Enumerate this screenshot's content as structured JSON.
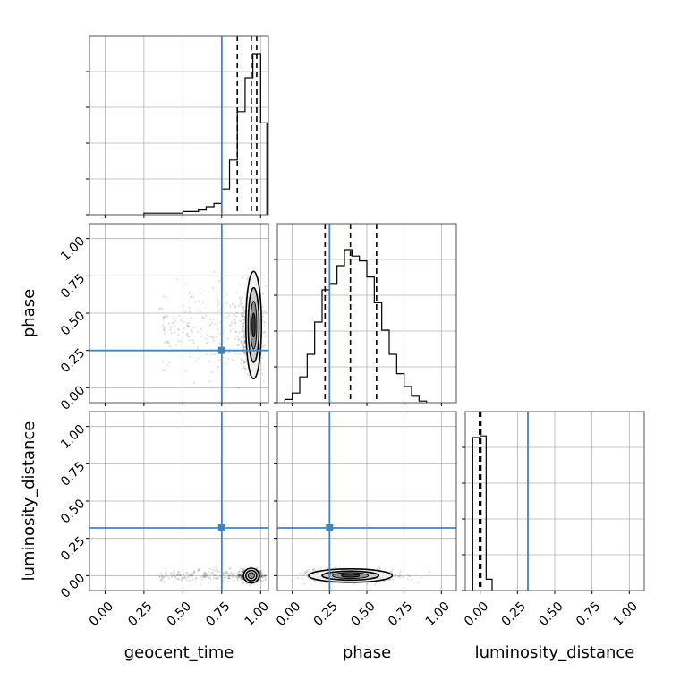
{
  "chart_data": {
    "type": "corner",
    "parameters": [
      "geocent_time",
      "phase",
      "luminosity_distance"
    ],
    "axis_labels": {
      "x": [
        "geocent_time",
        "phase",
        "luminosity_distance"
      ],
      "y": [
        "",
        "phase",
        "luminosity_distance"
      ]
    },
    "ticks": [
      0.0,
      0.25,
      0.5,
      0.75,
      1.0
    ],
    "tick_labels": [
      "0.00",
      "0.25",
      "0.50",
      "0.75",
      "1.00"
    ],
    "ranges": {
      "geocent_time": [
        -0.1,
        1.05
      ],
      "phase": [
        -0.1,
        1.1
      ],
      "luminosity_distance": [
        -0.1,
        1.1
      ]
    },
    "truths": {
      "geocent_time": 0.75,
      "phase": 0.25,
      "luminosity_distance": 0.32
    },
    "truth_color": "#4682b4",
    "contour_color": "#000000",
    "grid": true,
    "histograms": {
      "geocent_time": {
        "bin_edges": [
          0.25,
          0.3,
          0.35,
          0.4,
          0.45,
          0.5,
          0.55,
          0.6,
          0.65,
          0.7,
          0.75,
          0.8,
          0.85,
          0.9,
          0.95,
          1.0,
          1.04
        ],
        "heights": [
          0.01,
          0.01,
          0.01,
          0.01,
          0.01,
          0.02,
          0.02,
          0.03,
          0.05,
          0.07,
          0.16,
          0.34,
          0.64,
          0.85,
          1.0,
          0.57
        ],
        "quantiles": [
          0.85,
          0.94,
          0.975
        ]
      },
      "phase": {
        "bin_edges": [
          -0.05,
          0.0,
          0.05,
          0.1,
          0.15,
          0.2,
          0.25,
          0.3,
          0.35,
          0.4,
          0.45,
          0.5,
          0.55,
          0.6,
          0.65,
          0.7,
          0.75,
          0.8,
          0.85,
          0.9
        ],
        "heights": [
          0.02,
          0.06,
          0.16,
          0.3,
          0.5,
          0.7,
          0.74,
          0.85,
          0.95,
          0.91,
          0.88,
          0.78,
          0.62,
          0.45,
          0.3,
          0.18,
          0.1,
          0.04,
          0.01
        ],
        "quantiles": [
          0.22,
          0.39,
          0.565
        ]
      },
      "luminosity_distance": {
        "bin_edges": [
          -0.05,
          0.0,
          0.04,
          0.08
        ],
        "heights": [
          0.95,
          0.96,
          0.07
        ],
        "quantiles": [
          -0.005,
          0.0,
          0.005
        ]
      }
    }
  }
}
